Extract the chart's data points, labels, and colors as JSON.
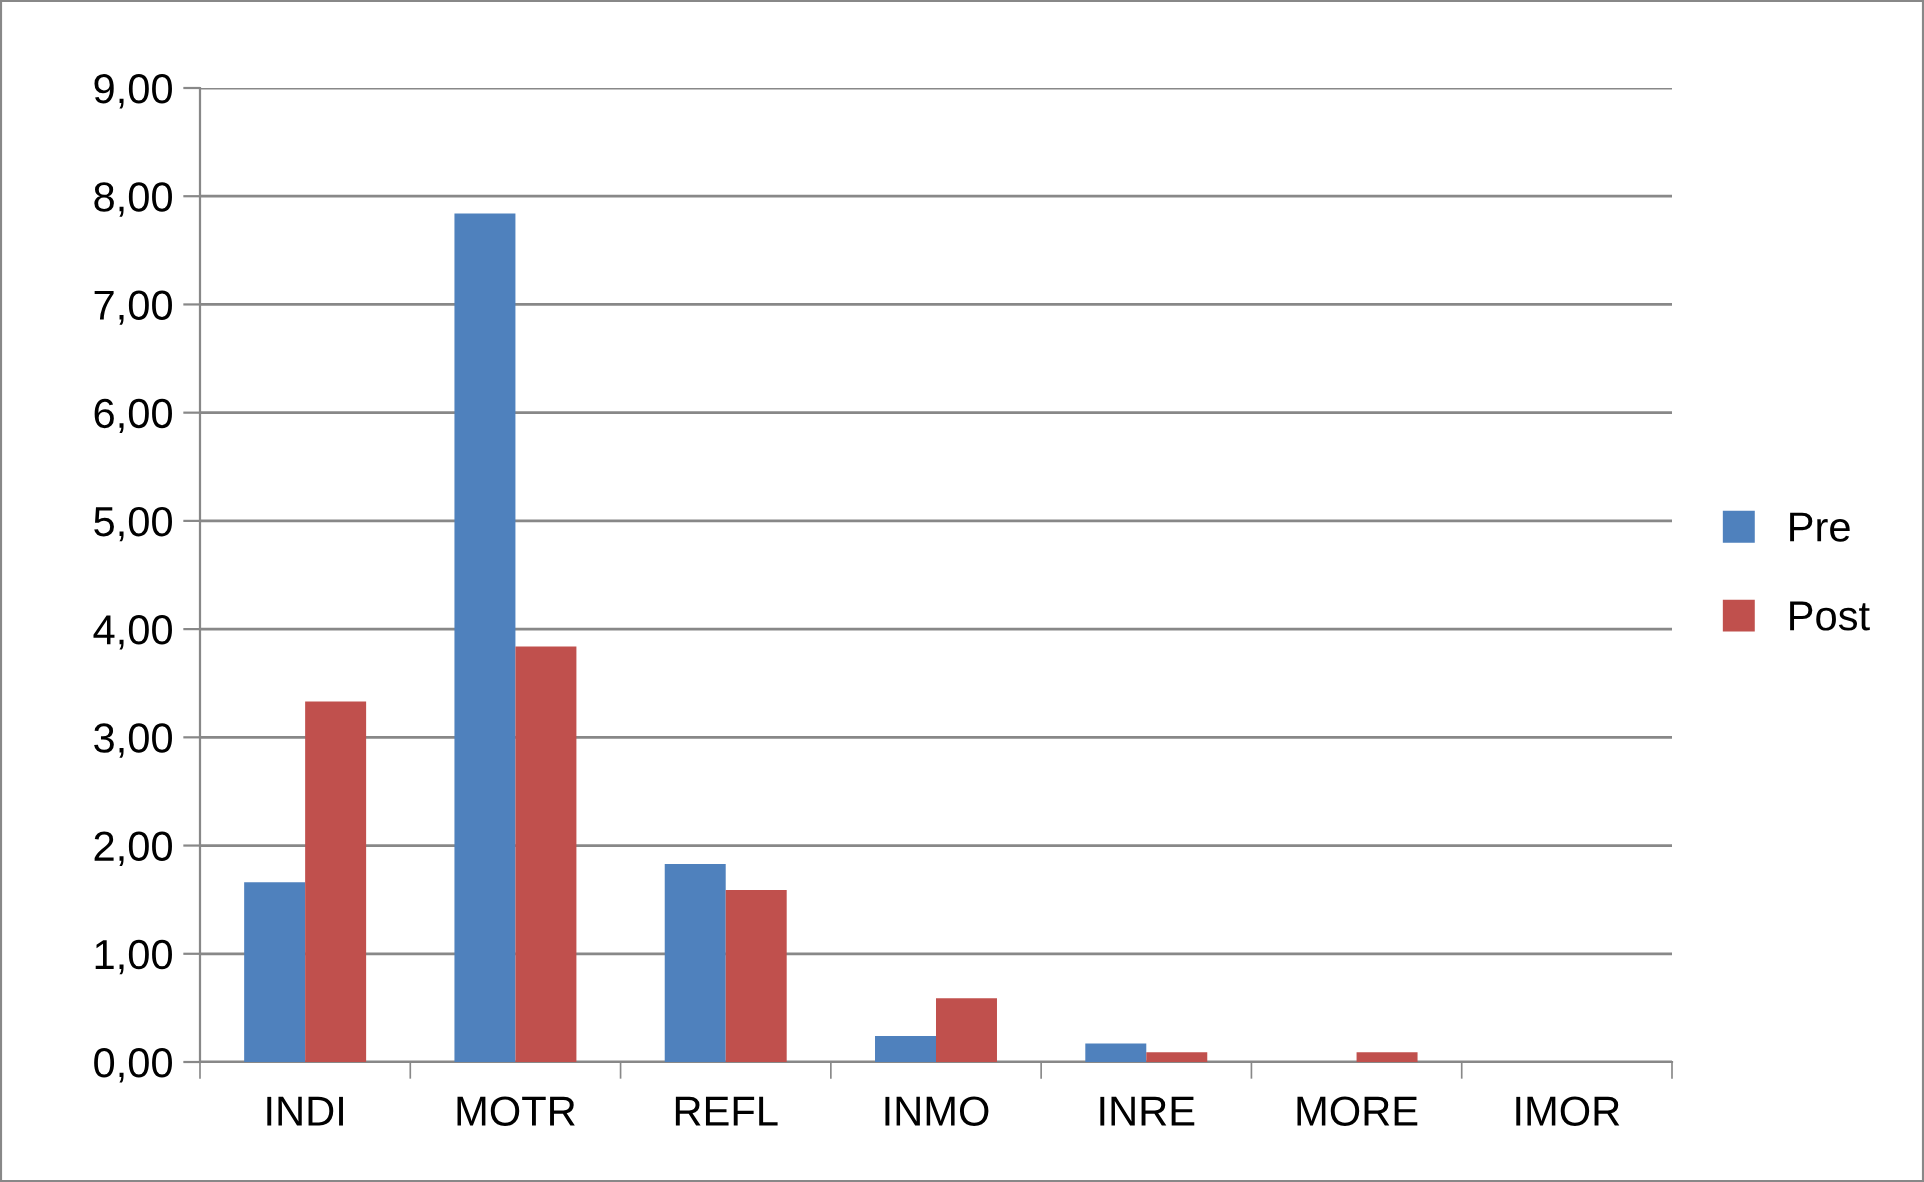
{
  "chart_data": {
    "type": "bar",
    "categories": [
      "INDI",
      "MOTR",
      "REFL",
      "INMO",
      "INRE",
      "MORE",
      "IMOR"
    ],
    "series": [
      {
        "name": "Pre",
        "color": "#4f81bd",
        "values": [
          1.66,
          7.84,
          1.83,
          0.24,
          0.17,
          0,
          0
        ]
      },
      {
        "name": "Post",
        "color": "#c0504d",
        "values": [
          3.33,
          3.84,
          1.59,
          0.59,
          0.09,
          0.09,
          0
        ]
      }
    ],
    "ylim": [
      0,
      9
    ],
    "yticks": [
      {
        "value": 0,
        "label": "0,00"
      },
      {
        "value": 1,
        "label": "1,00"
      },
      {
        "value": 2,
        "label": "2,00"
      },
      {
        "value": 3,
        "label": "3,00"
      },
      {
        "value": 4,
        "label": "4,00"
      },
      {
        "value": 5,
        "label": "5,00"
      },
      {
        "value": 6,
        "label": "6,00"
      },
      {
        "value": 7,
        "label": "7,00"
      },
      {
        "value": 8,
        "label": "8,00"
      },
      {
        "value": 9,
        "label": "9,00"
      }
    ],
    "grid": "y",
    "legend": "right"
  }
}
